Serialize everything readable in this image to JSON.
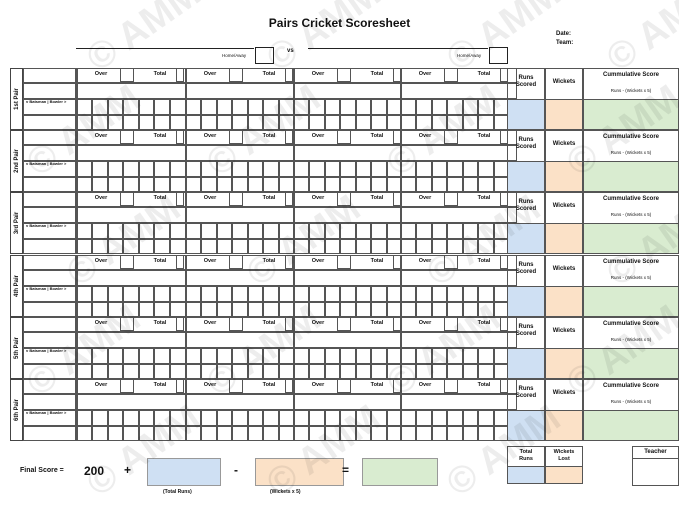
{
  "title": "Pairs Cricket Scoresheet",
  "header": {
    "date_label": "Date:",
    "team_label": "Team:",
    "home_away_label": "Home/Away",
    "vs_label": "vs"
  },
  "pair_labels": [
    "1st Pair",
    "2nd Pair",
    "3rd Pair",
    "4th Pair",
    "5th Pair",
    "6th Pair"
  ],
  "columns": {
    "over": "Over",
    "total": "Total",
    "batsman_bowler": "v Batsman | Bowler >",
    "runs_scored": "Runs Scored",
    "wickets": "Wickets",
    "cumulative_score": "Cummulative Score",
    "cumulative_formula": "Runs - (Wickets x 5)"
  },
  "colors": {
    "runs": "#cfe0f3",
    "wickets": "#fbe1c7",
    "score": "#d9ecd0"
  },
  "footer": {
    "final_score_label": "Final Score =",
    "base_score": "200",
    "plus": "+",
    "minus": "-",
    "equals": "=",
    "total_runs_caption": "(Total Runs)",
    "wickets_caption": "(Wickets x 5)",
    "total_runs_label": "Total Runs",
    "wickets_lost_label": "Wickets Lost",
    "teacher_label": "Teacher"
  },
  "watermark": "© AMM"
}
